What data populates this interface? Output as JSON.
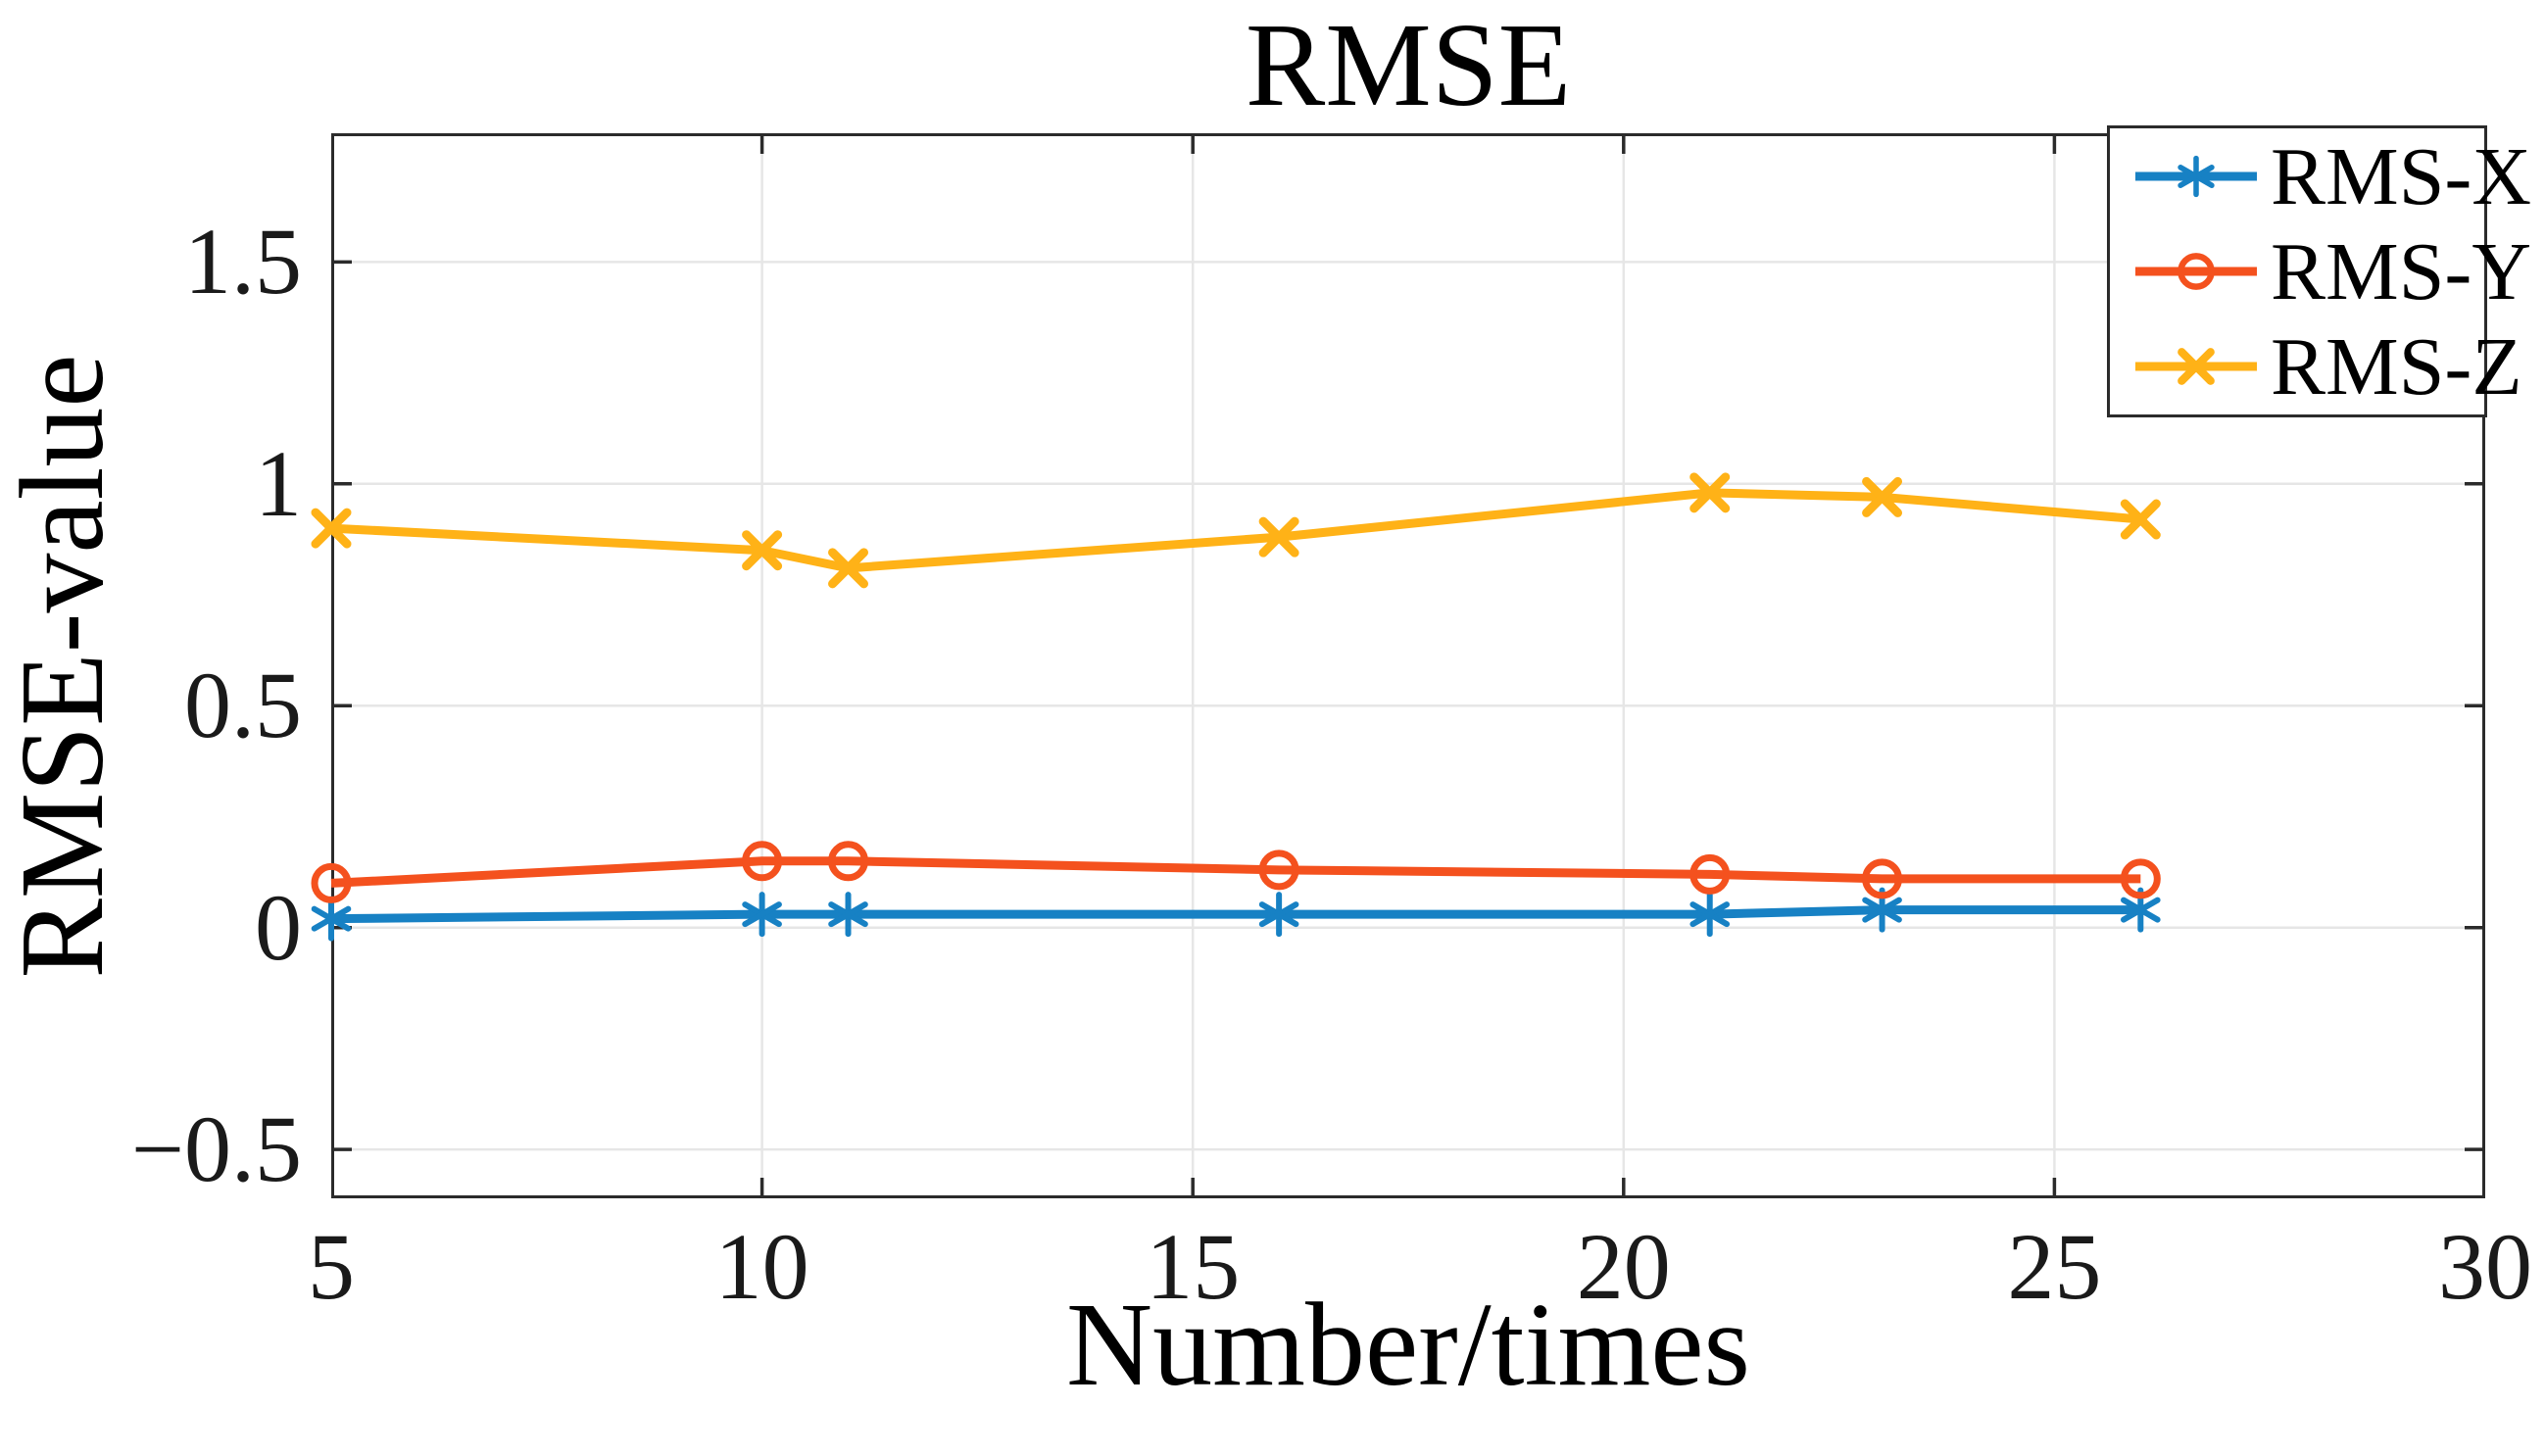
{
  "page": {
    "background": "#ffffff"
  },
  "chart_data": {
    "type": "line",
    "title": "RMSE",
    "xlabel": "Number/times",
    "ylabel": "RMSE-value",
    "x": [
      5,
      10,
      11,
      16,
      21,
      23,
      26
    ],
    "series": [
      {
        "name": "RMS-X",
        "marker": "asterisk",
        "color": "#1781C4",
        "values": [
          0.02,
          0.03,
          0.03,
          0.03,
          0.03,
          0.04,
          0.04
        ]
      },
      {
        "name": "RMS-Y",
        "marker": "circle",
        "color": "#F4511E",
        "values": [
          0.1,
          0.15,
          0.15,
          0.13,
          0.12,
          0.11,
          0.11
        ]
      },
      {
        "name": "RMS-Z",
        "marker": "x",
        "color": "#FFB217",
        "values": [
          0.9,
          0.85,
          0.81,
          0.88,
          0.98,
          0.97,
          0.92
        ]
      }
    ],
    "xlim": [
      5,
      30
    ],
    "ylim": [
      -0.61,
      1.79
    ],
    "x_ticks": [
      5,
      10,
      15,
      20,
      25,
      30
    ],
    "x_tick_labels": [
      "5",
      "10",
      "15",
      "20",
      "25",
      "30"
    ],
    "y_ticks": [
      -0.5,
      0,
      0.5,
      1,
      1.5
    ],
    "y_tick_labels": [
      "−0.5",
      "0",
      "0.5",
      "1",
      "1.5"
    ],
    "grid": true,
    "legend_position": "top-right",
    "axis_color": "#2b2b2b",
    "grid_color": "#e6e6e6",
    "text_color": "#1a1a1a"
  }
}
